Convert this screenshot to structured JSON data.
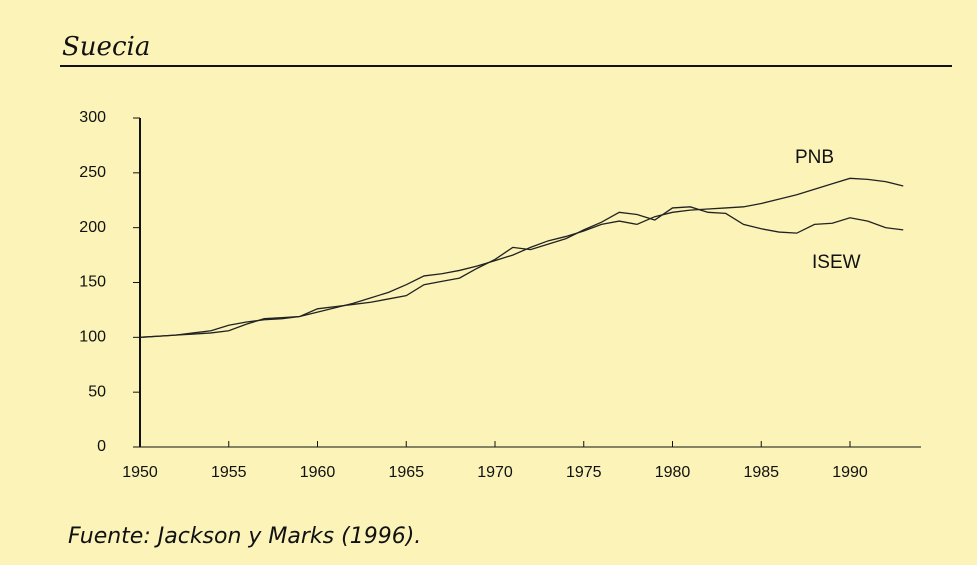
{
  "chart_data": {
    "type": "line",
    "title": "Suecia",
    "source": "Fuente: Jackson y Marks (1996).",
    "x": [
      1950,
      1951,
      1952,
      1953,
      1954,
      1955,
      1956,
      1957,
      1958,
      1959,
      1960,
      1961,
      1962,
      1963,
      1964,
      1965,
      1966,
      1967,
      1968,
      1969,
      1970,
      1971,
      1972,
      1973,
      1974,
      1975,
      1976,
      1977,
      1978,
      1979,
      1980,
      1981,
      1982,
      1983,
      1984,
      1985,
      1986,
      1987,
      1988,
      1989,
      1990,
      1991,
      1992,
      1993
    ],
    "series": [
      {
        "name": "PNB",
        "color": "#222222",
        "values": [
          100,
          101,
          102,
          104,
          106,
          111,
          114,
          116,
          117,
          119,
          123,
          127,
          131,
          136,
          141,
          148,
          156,
          158,
          161,
          165,
          170,
          175,
          182,
          188,
          192,
          197,
          203,
          206,
          203,
          210,
          214,
          216,
          217,
          218,
          219,
          222,
          226,
          230,
          235,
          240,
          245,
          244,
          242,
          238
        ]
      },
      {
        "name": "ISEW",
        "color": "#222222",
        "values": [
          100,
          101,
          102,
          103,
          104,
          106,
          112,
          117,
          118,
          119,
          126,
          128,
          130,
          132,
          135,
          138,
          148,
          151,
          154,
          163,
          171,
          182,
          180,
          185,
          190,
          198,
          205,
          214,
          212,
          207,
          218,
          219,
          214,
          213,
          203,
          199,
          196,
          195,
          203,
          204,
          209,
          206,
          200,
          198
        ]
      }
    ],
    "xlim": [
      1950,
      1994
    ],
    "xticks": [
      1950,
      1955,
      1960,
      1965,
      1970,
      1975,
      1980,
      1985,
      1990
    ],
    "ylim": [
      0,
      300
    ],
    "yticks": [
      0,
      50,
      100,
      150,
      200,
      250,
      300
    ]
  }
}
